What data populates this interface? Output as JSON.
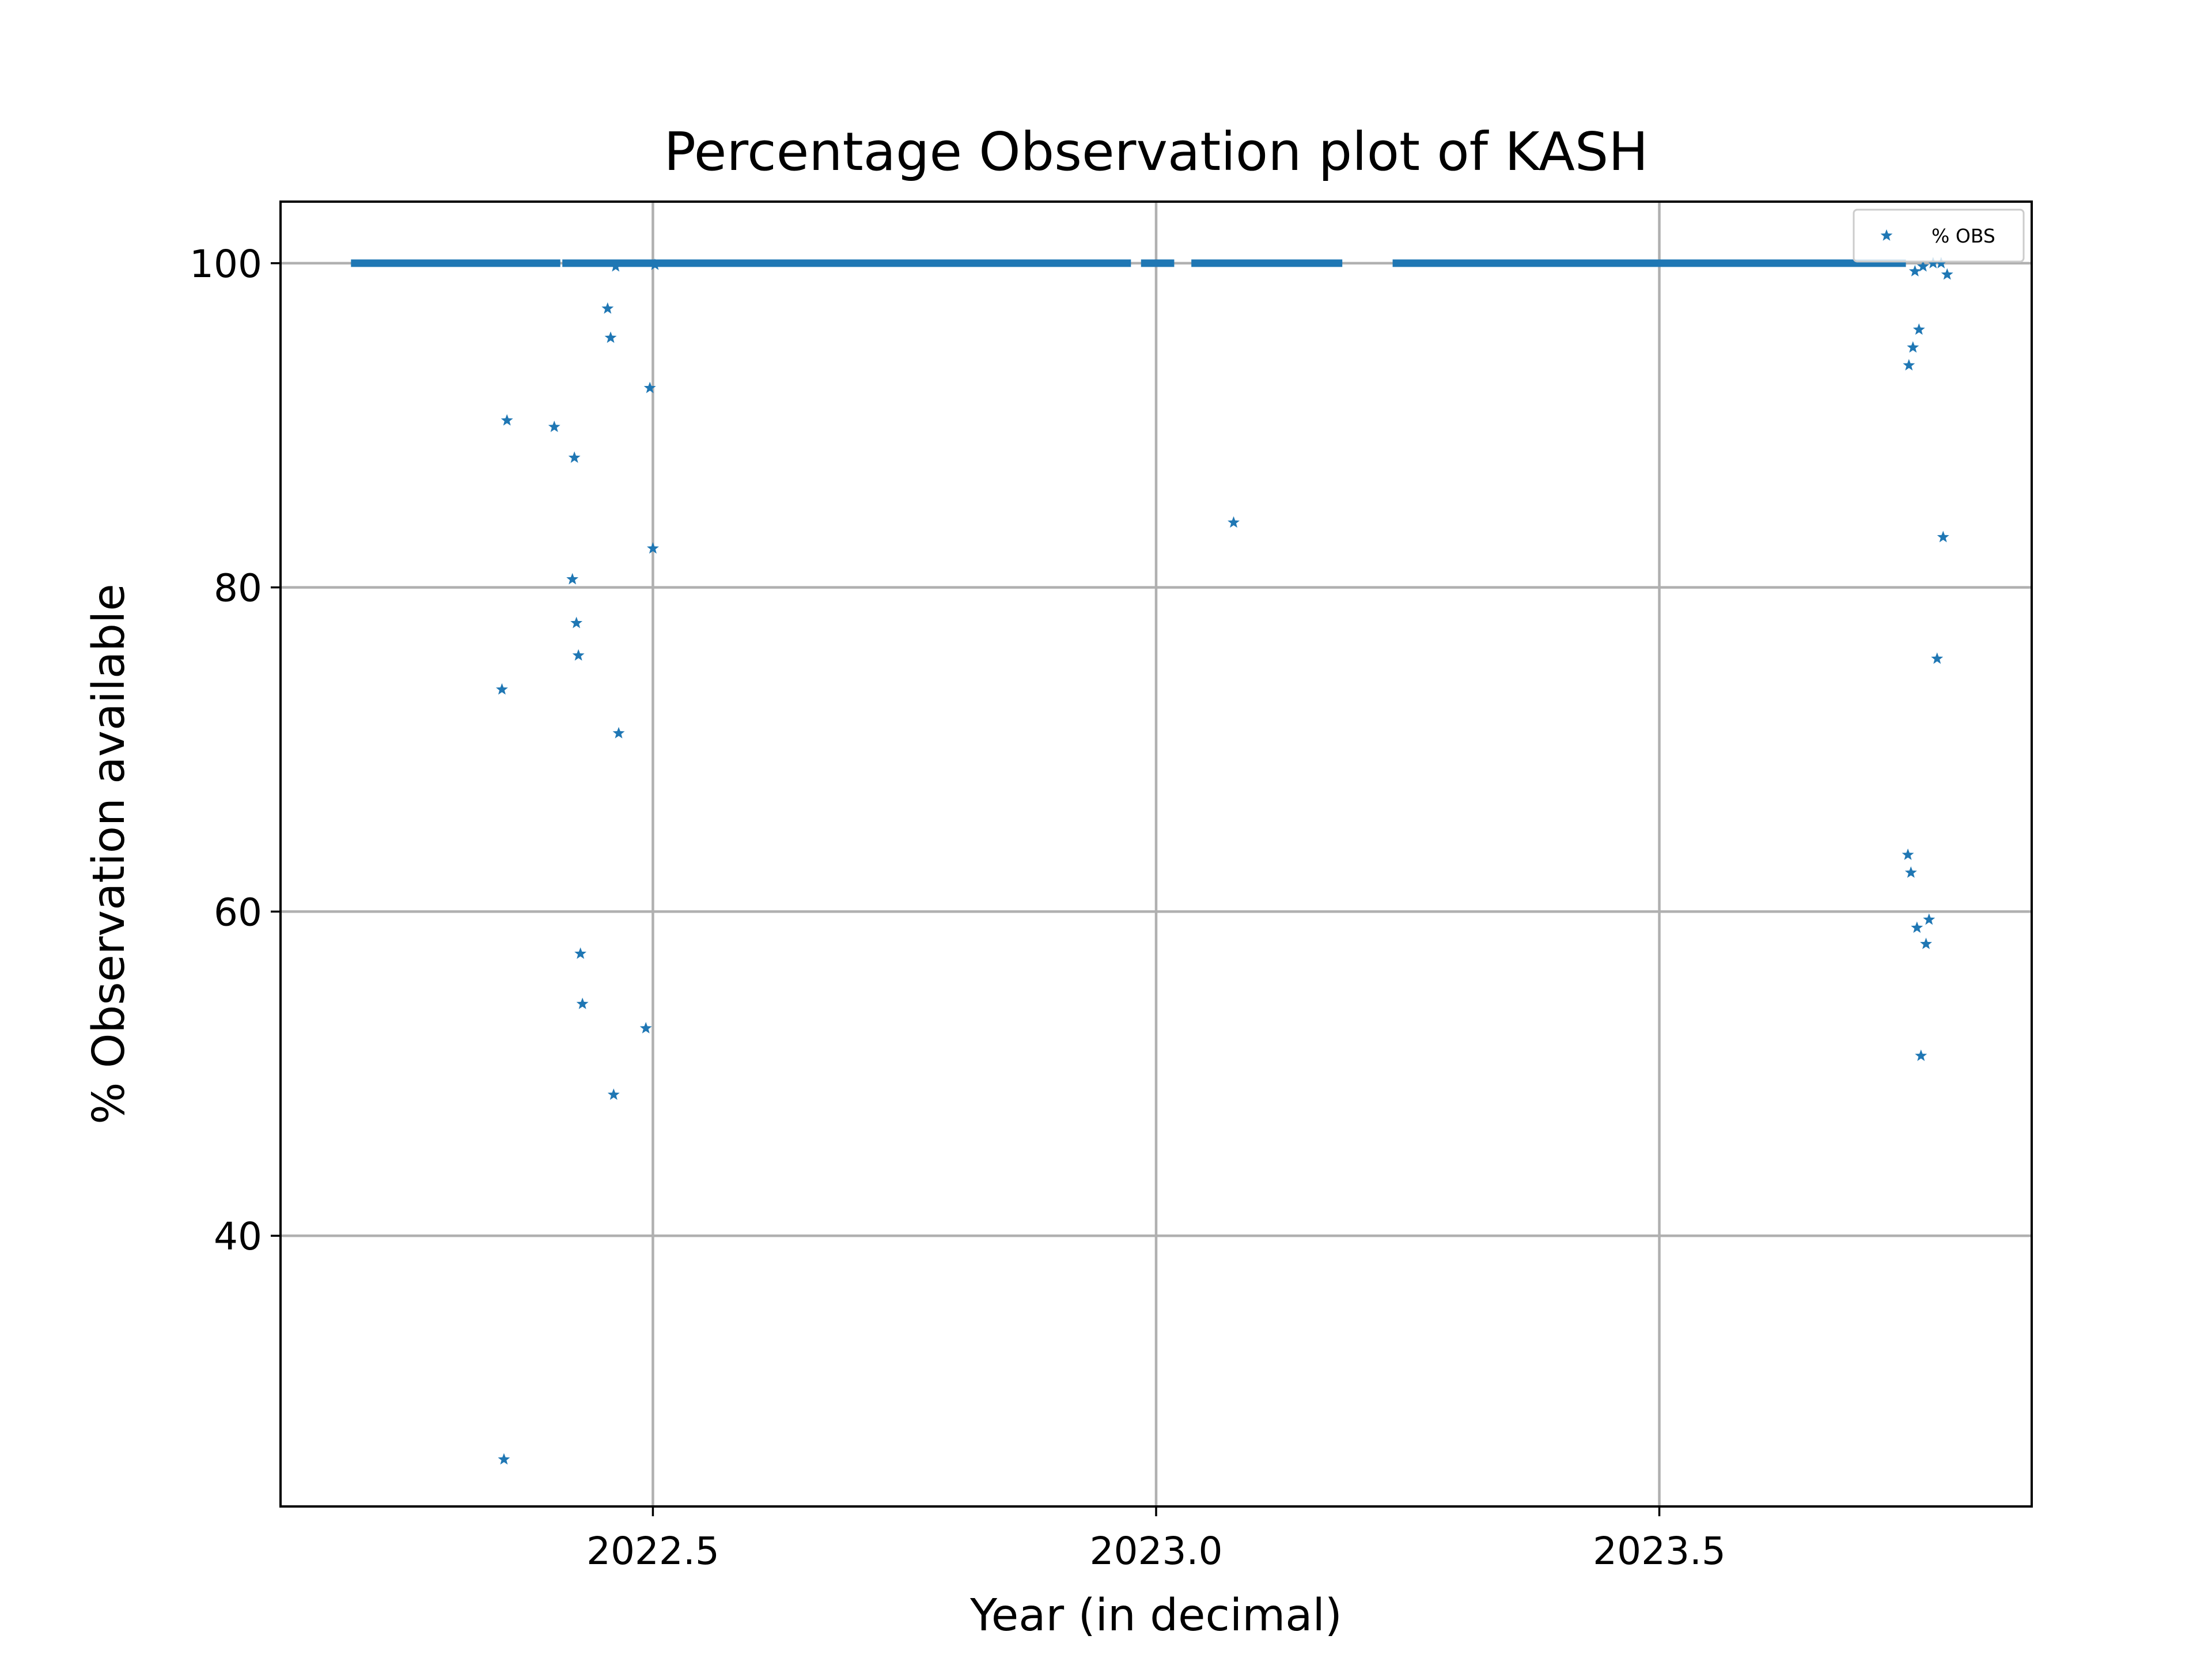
{
  "chart_data": {
    "type": "scatter",
    "title": "Percentage Observation plot of KASH",
    "xlabel": "Year (in decimal)",
    "ylabel": "% Observation available",
    "xlim": [
      2022.13,
      2023.87
    ],
    "ylim": [
      23.3,
      103.8
    ],
    "xticks": [
      2022.5,
      2023.0,
      2023.5
    ],
    "xtick_labels": [
      "2022.5",
      "2023.0",
      "2023.5"
    ],
    "yticks": [
      40,
      60,
      80,
      100
    ],
    "ytick_labels": [
      "40",
      "60",
      "80",
      "100"
    ],
    "grid": true,
    "legend_position": "upper right",
    "marker": "star",
    "series": [
      {
        "name": "% OBS",
        "color": "#1f77b4",
        "continuous_segments": [
          {
            "x_start": 2022.2,
            "x_end": 2022.408,
            "y": 100
          },
          {
            "x_start": 2022.41,
            "x_end": 2022.975,
            "y": 100
          },
          {
            "x_start": 2022.985,
            "x_end": 2023.018,
            "y": 100
          },
          {
            "x_start": 2023.035,
            "x_end": 2023.185,
            "y": 100
          },
          {
            "x_start": 2023.235,
            "x_end": 2023.745,
            "y": 100
          }
        ],
        "points": [
          {
            "x": 2022.35,
            "y": 73.7
          },
          {
            "x": 2022.352,
            "y": 26.2
          },
          {
            "x": 2022.355,
            "y": 90.3
          },
          {
            "x": 2022.402,
            "y": 89.9
          },
          {
            "x": 2022.42,
            "y": 80.5
          },
          {
            "x": 2022.422,
            "y": 88.0
          },
          {
            "x": 2022.424,
            "y": 77.8
          },
          {
            "x": 2022.426,
            "y": 75.8
          },
          {
            "x": 2022.428,
            "y": 57.4
          },
          {
            "x": 2022.43,
            "y": 54.3
          },
          {
            "x": 2022.455,
            "y": 97.2
          },
          {
            "x": 2022.458,
            "y": 95.4
          },
          {
            "x": 2022.461,
            "y": 48.7
          },
          {
            "x": 2022.463,
            "y": 99.8
          },
          {
            "x": 2022.466,
            "y": 71.0
          },
          {
            "x": 2022.493,
            "y": 52.8
          },
          {
            "x": 2022.497,
            "y": 92.3
          },
          {
            "x": 2022.5,
            "y": 82.4
          },
          {
            "x": 2022.502,
            "y": 99.9
          },
          {
            "x": 2023.077,
            "y": 84.0
          },
          {
            "x": 2023.747,
            "y": 63.5
          },
          {
            "x": 2023.748,
            "y": 93.7
          },
          {
            "x": 2023.75,
            "y": 62.4
          },
          {
            "x": 2023.752,
            "y": 94.8
          },
          {
            "x": 2023.754,
            "y": 99.5
          },
          {
            "x": 2023.756,
            "y": 59.0
          },
          {
            "x": 2023.758,
            "y": 95.9
          },
          {
            "x": 2023.76,
            "y": 51.1
          },
          {
            "x": 2023.762,
            "y": 99.8
          },
          {
            "x": 2023.765,
            "y": 58.0
          },
          {
            "x": 2023.768,
            "y": 59.5
          },
          {
            "x": 2023.772,
            "y": 100.0
          },
          {
            "x": 2023.776,
            "y": 75.6
          },
          {
            "x": 2023.78,
            "y": 100.0
          },
          {
            "x": 2023.782,
            "y": 83.1
          },
          {
            "x": 2023.786,
            "y": 99.3
          }
        ]
      }
    ]
  }
}
